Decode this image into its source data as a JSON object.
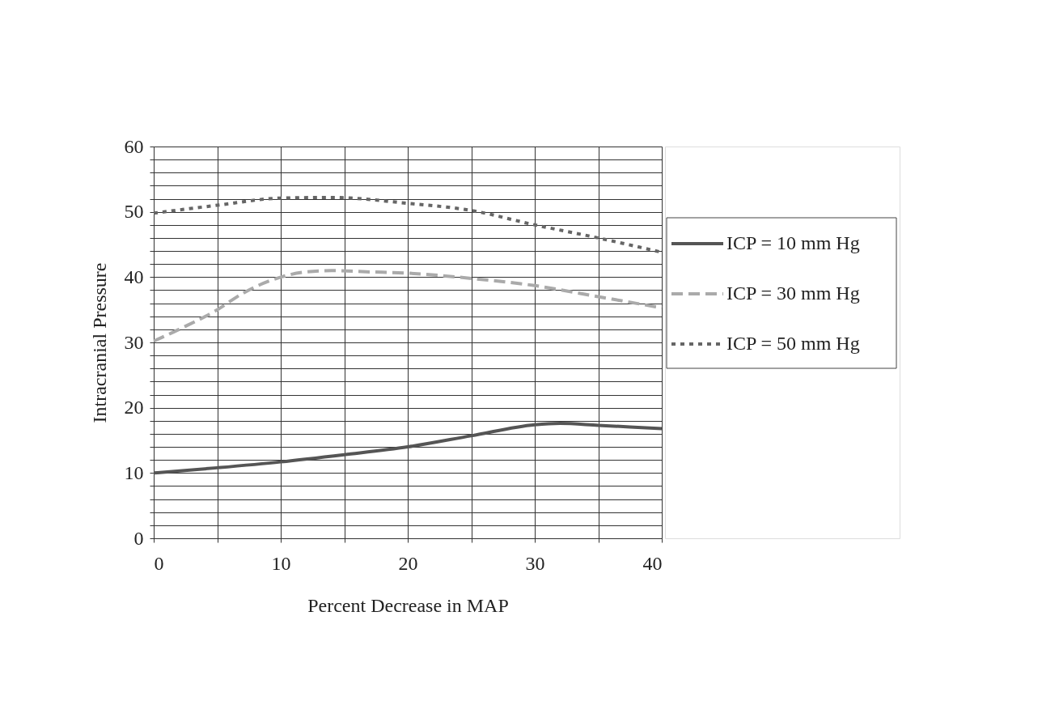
{
  "chart_data": {
    "type": "line",
    "xlabel": "Percent Decrease in MAP",
    "ylabel": "Intracranial Pressure",
    "xlim": [
      0,
      40
    ],
    "ylim": [
      0,
      60
    ],
    "xticks": [
      0,
      {
        "value": 5,
        "label": null
      },
      10,
      {
        "value": 15,
        "label": null
      },
      20,
      {
        "value": 25,
        "label": null
      },
      30,
      {
        "value": 35,
        "label": null
      },
      40
    ],
    "yticks": [
      0,
      {
        "value": 2,
        "label": null
      },
      {
        "value": 4,
        "label": null
      },
      {
        "value": 6,
        "label": null
      },
      {
        "value": 8,
        "label": null
      },
      10,
      {
        "value": 12,
        "label": null
      },
      {
        "value": 14,
        "label": null
      },
      {
        "value": 16,
        "label": null
      },
      {
        "value": 18,
        "label": null
      },
      20,
      {
        "value": 22,
        "label": null
      },
      {
        "value": 24,
        "label": null
      },
      {
        "value": 26,
        "label": null
      },
      {
        "value": 28,
        "label": null
      },
      30,
      {
        "value": 32,
        "label": null
      },
      {
        "value": 34,
        "label": null
      },
      {
        "value": 36,
        "label": null
      },
      {
        "value": 38,
        "label": null
      },
      40,
      {
        "value": 42,
        "label": null
      },
      {
        "value": 44,
        "label": null
      },
      {
        "value": 46,
        "label": null
      },
      {
        "value": 48,
        "label": null
      },
      50,
      {
        "value": 52,
        "label": null
      },
      {
        "value": 54,
        "label": null
      },
      {
        "value": 56,
        "label": null
      },
      {
        "value": 58,
        "label": null
      },
      60
    ],
    "grid": true,
    "legend": "right",
    "marker": "none",
    "series": [
      {
        "name": "ICP = 10 mm Hg",
        "color": "#555555",
        "line_style": "solid",
        "x": [
          0,
          5,
          10,
          15,
          20,
          25,
          30,
          32,
          35,
          40
        ],
        "values": [
          10,
          10.8,
          11.7,
          12.8,
          14,
          15.7,
          17.4,
          17.6,
          17.3,
          16.8
        ]
      },
      {
        "name": "ICP = 30 mm Hg",
        "color": "#aaaaaa",
        "line_style": "dashed",
        "x": [
          0,
          2,
          5,
          7,
          10,
          12,
          14,
          17,
          20,
          25,
          30,
          35,
          40
        ],
        "values": [
          30.2,
          32,
          35,
          37.5,
          40,
          40.8,
          41,
          40.8,
          40.6,
          39.8,
          38.7,
          37,
          35.3
        ]
      },
      {
        "name": "ICP = 50 mm Hg",
        "color": "#666666",
        "line_style": "dotted",
        "x": [
          0,
          5,
          10,
          14,
          20,
          25,
          30,
          35,
          40
        ],
        "values": [
          49.8,
          51,
          52.1,
          52.2,
          51.3,
          50.2,
          48,
          46,
          43.8
        ]
      }
    ]
  }
}
